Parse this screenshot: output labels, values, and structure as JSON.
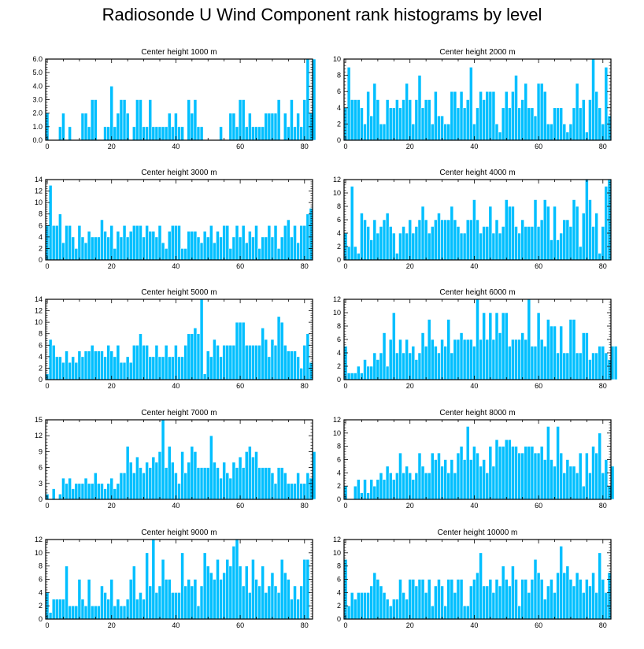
{
  "page_title": "Radiosonde U Wind Component rank histograms by level",
  "colors": {
    "bar": "#00bfff",
    "axis": "#000000"
  },
  "chart_data": [
    {
      "type": "bar",
      "title": "Center height 1000 m",
      "x": {
        "start": 0,
        "ticks": [
          0,
          20,
          40,
          60,
          80
        ],
        "xlim": [
          -0.5,
          82.5
        ]
      },
      "ylim": [
        0,
        6
      ],
      "yticks": [
        "0.0",
        "1.0",
        "2.0",
        "3.0",
        "4.0",
        "5.0",
        "6.0"
      ],
      "ytick_values": [
        0,
        1,
        2,
        3,
        4,
        5,
        6
      ],
      "values": [
        2,
        0,
        0,
        0,
        1,
        2,
        0,
        1,
        0,
        0,
        0,
        2,
        2,
        1,
        3,
        3,
        0,
        0,
        1,
        1,
        4,
        1,
        2,
        3,
        3,
        2,
        0,
        1,
        3,
        3,
        1,
        1,
        3,
        1,
        1,
        1,
        1,
        1,
        2,
        1,
        2,
        1,
        1,
        0,
        3,
        2,
        3,
        1,
        1,
        0,
        0,
        0,
        0,
        0,
        1,
        0,
        0,
        2,
        2,
        1,
        3,
        3,
        1,
        2,
        1,
        1,
        1,
        1,
        2,
        2,
        2,
        2,
        3,
        0,
        2,
        1,
        3,
        1,
        2,
        1,
        3,
        6,
        2,
        6,
        0
      ]
    },
    {
      "type": "bar",
      "title": "Center height 2000 m",
      "x": {
        "start": 0,
        "ticks": [
          0,
          20,
          40,
          60,
          80
        ],
        "xlim": [
          -0.5,
          82.5
        ]
      },
      "ylim": [
        0,
        10
      ],
      "yticks": [
        "0",
        "2",
        "4",
        "6",
        "8",
        "10"
      ],
      "ytick_values": [
        0,
        2,
        4,
        6,
        8,
        10
      ],
      "values": [
        4,
        9,
        5,
        5,
        5,
        4,
        2,
        6,
        3,
        7,
        5,
        2,
        2,
        5,
        4,
        4,
        5,
        4,
        5,
        7,
        5,
        2,
        5,
        8,
        4,
        5,
        5,
        2,
        6,
        3,
        3,
        2,
        2,
        6,
        6,
        4,
        6,
        4,
        5,
        9,
        2,
        4,
        6,
        5,
        6,
        6,
        6,
        2,
        1,
        4,
        6,
        4,
        6,
        8,
        4,
        5,
        7,
        4,
        4,
        3,
        7,
        7,
        6,
        2,
        2,
        4,
        4,
        4,
        2,
        1,
        2,
        4,
        7,
        4,
        5,
        1,
        5,
        10,
        6,
        4,
        2,
        9,
        3
      ]
    },
    {
      "type": "bar",
      "title": "Center height 3000 m",
      "x": {
        "start": 0,
        "ticks": [
          0,
          20,
          40,
          60,
          80
        ],
        "xlim": [
          -0.5,
          82.5
        ]
      },
      "ylim": [
        0,
        14
      ],
      "yticks": [
        "0",
        "2",
        "4",
        "6",
        "8",
        "10",
        "12",
        "14"
      ],
      "ytick_values": [
        0,
        2,
        4,
        6,
        8,
        10,
        12,
        14
      ],
      "values": [
        6,
        13,
        6,
        6,
        8,
        3,
        6,
        6,
        4,
        2,
        6,
        4,
        3,
        5,
        4,
        4,
        4,
        7,
        5,
        4,
        6,
        2,
        5,
        4,
        6,
        4,
        5,
        6,
        6,
        6,
        4,
        6,
        5,
        5,
        4,
        6,
        3,
        2,
        5,
        6,
        6,
        6,
        2,
        2,
        5,
        5,
        5,
        4,
        3,
        5,
        4,
        6,
        3,
        5,
        4,
        6,
        6,
        2,
        4,
        6,
        4,
        6,
        3,
        5,
        4,
        6,
        2,
        4,
        4,
        6,
        4,
        6,
        2,
        4,
        6,
        7,
        4,
        6,
        3,
        6,
        6,
        8,
        9
      ]
    },
    {
      "type": "bar",
      "title": "Center height 4000 m",
      "x": {
        "start": 0,
        "ticks": [
          0,
          20,
          40,
          60,
          80
        ],
        "xlim": [
          -0.5,
          82.5
        ]
      },
      "ylim": [
        0,
        12
      ],
      "yticks": [
        "0",
        "2",
        "4",
        "6",
        "8",
        "10",
        "12"
      ],
      "ytick_values": [
        0,
        2,
        4,
        6,
        8,
        10,
        12
      ],
      "values": [
        4,
        2,
        11,
        2,
        1,
        7,
        6,
        5,
        3,
        6,
        4,
        5,
        6,
        7,
        5,
        4,
        1,
        4,
        5,
        4,
        6,
        4,
        5,
        6,
        8,
        6,
        4,
        5,
        6,
        7,
        6,
        6,
        6,
        8,
        6,
        5,
        4,
        4,
        6,
        6,
        9,
        6,
        4,
        5,
        5,
        8,
        4,
        6,
        4,
        5,
        9,
        8,
        8,
        5,
        4,
        6,
        5,
        5,
        5,
        9,
        5,
        6,
        9,
        8,
        3,
        8,
        3,
        4,
        6,
        6,
        5,
        9,
        8,
        2,
        7,
        12,
        9,
        5,
        7,
        1,
        5,
        11,
        12
      ]
    },
    {
      "type": "bar",
      "title": "Center height 5000 m",
      "x": {
        "start": 0,
        "ticks": [
          0,
          20,
          40,
          60,
          80
        ],
        "xlim": [
          -0.5,
          82.5
        ]
      },
      "ylim": [
        0,
        14
      ],
      "yticks": [
        "0",
        "2",
        "4",
        "6",
        "8",
        "10",
        "12",
        "14"
      ],
      "ytick_values": [
        0,
        2,
        4,
        6,
        8,
        10,
        12,
        14
      ],
      "values": [
        1,
        7,
        6,
        4,
        4,
        3,
        5,
        3,
        4,
        3,
        5,
        4,
        5,
        5,
        6,
        5,
        5,
        5,
        4,
        6,
        5,
        4,
        6,
        3,
        3,
        4,
        3,
        6,
        6,
        8,
        6,
        6,
        4,
        4,
        6,
        4,
        4,
        6,
        4,
        4,
        6,
        4,
        4,
        6,
        8,
        8,
        9,
        8,
        14,
        1,
        5,
        4,
        7,
        6,
        4,
        6,
        6,
        6,
        6,
        10,
        10,
        10,
        6,
        6,
        6,
        6,
        6,
        9,
        7,
        4,
        7,
        6,
        11,
        10,
        6,
        5,
        5,
        5,
        4,
        2,
        6,
        8,
        3
      ]
    },
    {
      "type": "bar",
      "title": "Center height 6000 m",
      "x": {
        "start": 0,
        "ticks": [
          0,
          20,
          40,
          60,
          80
        ],
        "xlim": [
          -0.5,
          82.5
        ]
      },
      "ylim": [
        0,
        12
      ],
      "yticks": [
        "0",
        "2",
        "4",
        "6",
        "8",
        "10",
        "12"
      ],
      "ytick_values": [
        0,
        2,
        4,
        6,
        8,
        10,
        12
      ],
      "values": [
        5,
        1,
        1,
        1,
        2,
        1,
        3,
        2,
        2,
        4,
        3,
        4,
        7,
        2,
        6,
        10,
        4,
        6,
        4,
        6,
        4,
        5,
        3,
        4,
        7,
        5,
        9,
        6,
        5,
        4,
        6,
        5,
        9,
        4,
        6,
        6,
        7,
        6,
        6,
        6,
        5,
        12,
        6,
        10,
        6,
        10,
        6,
        10,
        7,
        10,
        10,
        5,
        6,
        6,
        6,
        7,
        6,
        12,
        5,
        5,
        10,
        6,
        5,
        9,
        8,
        8,
        4,
        8,
        4,
        4,
        9,
        9,
        4,
        4,
        7,
        7,
        3,
        4,
        4,
        5,
        5,
        4,
        3,
        5,
        5
      ]
    },
    {
      "type": "bar",
      "title": "Center height 7000 m",
      "x": {
        "start": 0,
        "ticks": [
          0,
          20,
          40,
          60,
          80
        ],
        "xlim": [
          -0.5,
          82.5
        ]
      },
      "ylim": [
        0,
        15
      ],
      "yticks": [
        "0",
        "3",
        "6",
        "9",
        "12",
        "15"
      ],
      "ytick_values": [
        0,
        3,
        6,
        9,
        12,
        15
      ],
      "values": [
        1,
        0,
        2,
        0,
        1,
        4,
        3,
        4,
        2,
        3,
        3,
        3,
        4,
        3,
        3,
        5,
        3,
        3,
        2,
        3,
        4,
        2,
        3,
        5,
        5,
        10,
        7,
        5,
        8,
        6,
        5,
        7,
        6,
        8,
        7,
        9,
        15,
        6,
        10,
        7,
        5,
        3,
        9,
        5,
        7,
        10,
        9,
        6,
        6,
        6,
        6,
        12,
        7,
        6,
        4,
        7,
        5,
        4,
        7,
        6,
        8,
        6,
        9,
        10,
        8,
        9,
        6,
        6,
        6,
        6,
        5,
        3,
        6,
        6,
        5,
        3,
        3,
        3,
        5,
        3,
        3,
        5,
        4,
        9
      ]
    },
    {
      "type": "bar",
      "title": "Center height 8000 m",
      "x": {
        "start": 0,
        "ticks": [
          0,
          20,
          40,
          60,
          80
        ],
        "xlim": [
          -0.5,
          82.5
        ]
      },
      "ylim": [
        0,
        12
      ],
      "yticks": [
        "0",
        "2",
        "4",
        "6",
        "8",
        "10",
        "12"
      ],
      "ytick_values": [
        0,
        2,
        4,
        6,
        8,
        10,
        12
      ],
      "values": [
        2,
        0,
        0,
        2,
        3,
        1,
        3,
        1,
        3,
        2,
        3,
        4,
        3,
        5,
        4,
        3,
        4,
        7,
        4,
        5,
        4,
        3,
        4,
        7,
        5,
        4,
        4,
        7,
        6,
        7,
        5,
        6,
        4,
        6,
        4,
        7,
        8,
        6,
        11,
        6,
        8,
        7,
        5,
        6,
        4,
        8,
        5,
        9,
        8,
        8,
        9,
        9,
        8,
        8,
        7,
        7,
        8,
        8,
        8,
        7,
        7,
        8,
        6,
        11,
        6,
        5,
        11,
        7,
        4,
        6,
        5,
        5,
        4,
        7,
        2,
        7,
        4,
        8,
        7,
        10,
        4,
        6,
        2,
        5
      ]
    },
    {
      "type": "bar",
      "title": "Center height 9000 m",
      "x": {
        "start": 0,
        "ticks": [
          0,
          20,
          40,
          60,
          80
        ],
        "xlim": [
          -0.5,
          82.5
        ]
      },
      "ylim": [
        0,
        12
      ],
      "yticks": [
        "0",
        "2",
        "4",
        "6",
        "8",
        "10",
        "12"
      ],
      "ytick_values": [
        0,
        2,
        4,
        6,
        8,
        10,
        12
      ],
      "values": [
        4,
        1,
        3,
        3,
        3,
        3,
        8,
        2,
        2,
        2,
        6,
        3,
        2,
        6,
        2,
        2,
        2,
        5,
        4,
        3,
        6,
        2,
        3,
        2,
        2,
        3,
        6,
        8,
        3,
        4,
        3,
        10,
        5,
        12,
        4,
        5,
        9,
        6,
        6,
        4,
        4,
        4,
        10,
        5,
        6,
        5,
        6,
        2,
        5,
        10,
        8,
        7,
        6,
        9,
        6,
        7,
        9,
        8,
        11,
        12,
        8,
        5,
        8,
        4,
        9,
        6,
        5,
        8,
        4,
        5,
        7,
        5,
        4,
        9,
        7,
        6,
        3,
        5,
        3,
        5,
        9,
        9
      ]
    },
    {
      "type": "bar",
      "title": "Center height 10000 m",
      "x": {
        "start": 0,
        "ticks": [
          0,
          20,
          40,
          60,
          80
        ],
        "xlim": [
          -0.5,
          82.5
        ]
      },
      "ylim": [
        0,
        12
      ],
      "yticks": [
        "0",
        "2",
        "4",
        "6",
        "8",
        "10",
        "12"
      ],
      "ytick_values": [
        0,
        2,
        4,
        6,
        8,
        10,
        12
      ],
      "values": [
        9,
        2,
        4,
        3,
        4,
        4,
        4,
        4,
        5,
        7,
        6,
        5,
        4,
        3,
        2,
        3,
        3,
        6,
        4,
        3,
        6,
        6,
        5,
        6,
        6,
        4,
        6,
        2,
        5,
        6,
        5,
        2,
        6,
        6,
        4,
        6,
        6,
        2,
        2,
        5,
        6,
        7,
        10,
        5,
        5,
        6,
        4,
        6,
        5,
        8,
        6,
        5,
        8,
        6,
        2,
        6,
        6,
        4,
        6,
        9,
        7,
        6,
        3,
        5,
        6,
        4,
        7,
        11,
        7,
        8,
        6,
        5,
        7,
        6,
        4,
        6,
        5,
        7,
        4,
        10,
        6,
        4,
        7
      ]
    }
  ]
}
